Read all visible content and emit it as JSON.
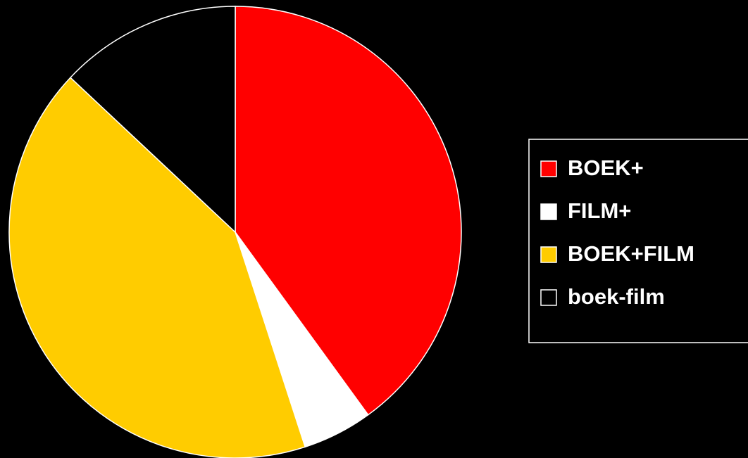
{
  "chart_data": {
    "type": "pie",
    "categories": [
      "BOEK+",
      "FILM+",
      "BOEK+FILM",
      "boek-film"
    ],
    "values": [
      40,
      5,
      42,
      13
    ],
    "colors": [
      "#ff0000",
      "#ffffff",
      "#ffcc00",
      "#000000"
    ],
    "legend": "right"
  }
}
